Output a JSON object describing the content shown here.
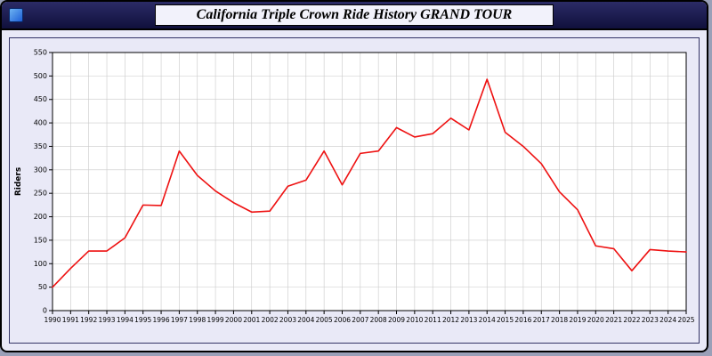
{
  "window": {
    "title": "California Triple Crown Ride History GRAND TOUR"
  },
  "chart_data": {
    "type": "line",
    "title": "California Triple Crown Ride History GRAND TOUR",
    "xlabel": "",
    "ylabel": "Riders",
    "ylim": [
      0,
      550
    ],
    "ytick_step": 50,
    "grid": true,
    "legend": "none",
    "line_color": "#ee1111",
    "x": [
      "1990",
      "1991",
      "1992",
      "1993",
      "1994",
      "1995",
      "1996",
      "1997",
      "1998",
      "1999",
      "2000",
      "2001",
      "2002",
      "2003",
      "2004",
      "2005",
      "2006",
      "2007",
      "2008",
      "2009",
      "2010",
      "2011",
      "2012",
      "2013",
      "2014",
      "2015",
      "2016",
      "2017",
      "2018",
      "2019",
      "2020",
      "2021",
      "2022",
      "2023",
      "2024",
      "2025"
    ],
    "series": [
      {
        "name": "Riders",
        "values": [
          50,
          90,
          127,
          127,
          155,
          225,
          224,
          340,
          288,
          255,
          230,
          210,
          212,
          265,
          278,
          340,
          268,
          335,
          340,
          390,
          370,
          377,
          410,
          385,
          493,
          380,
          350,
          313,
          253,
          215,
          138,
          132,
          85,
          130,
          127,
          125
        ]
      }
    ]
  },
  "colors": {
    "panel_bg": "#e9e9f7",
    "plot_bg": "#ffffff",
    "grid": "#c9c9c9",
    "axis": "#000000",
    "line": "#ee1111"
  }
}
